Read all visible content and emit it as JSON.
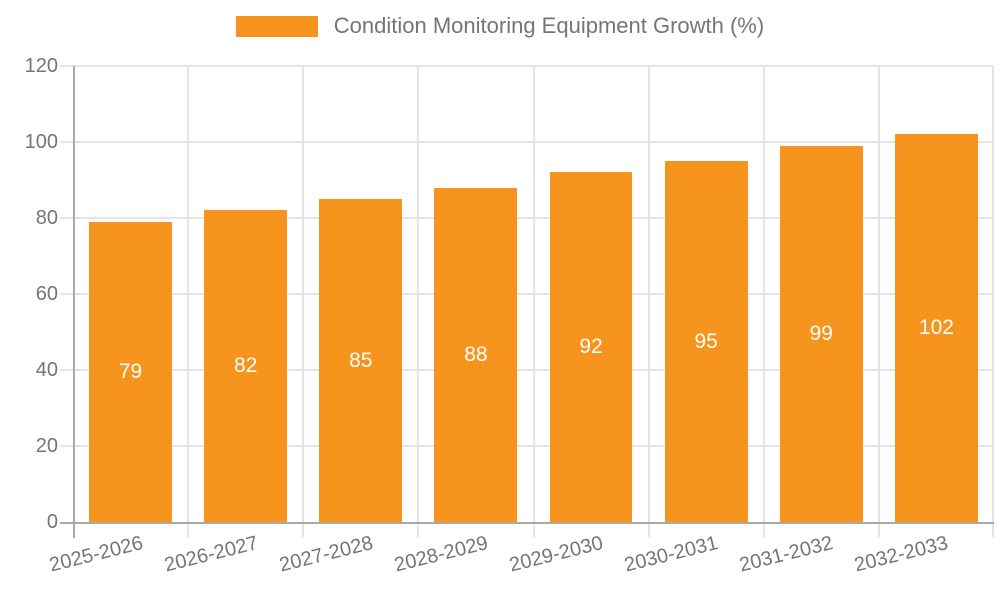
{
  "chart_data": {
    "type": "bar",
    "title": "Condition Monitoring Equipment Growth (%)",
    "categories": [
      "2025-2026",
      "2026-2027",
      "2027-2028",
      "2028-2029",
      "2029-2030",
      "2030-2031",
      "2031-2032",
      "2032-2033"
    ],
    "values": [
      79,
      82,
      85,
      88,
      92,
      95,
      99,
      102
    ],
    "value_labels": [
      "79",
      "82",
      "85",
      "88",
      "92",
      "95",
      "99",
      "102"
    ],
    "xlabel": "",
    "ylabel": "",
    "ylim": [
      0,
      120
    ],
    "yticks": [
      0,
      20,
      40,
      60,
      80,
      100,
      120
    ],
    "grid": true,
    "legend_position": "top",
    "colors": {
      "bar": "#F7941E",
      "value_label": "#FFFFFF",
      "axis_text": "#757575",
      "legend_text": "#757575",
      "gridline": "#E5E5E5",
      "axis_line": "#A9A9A9",
      "background": "#FFFFFF"
    }
  }
}
